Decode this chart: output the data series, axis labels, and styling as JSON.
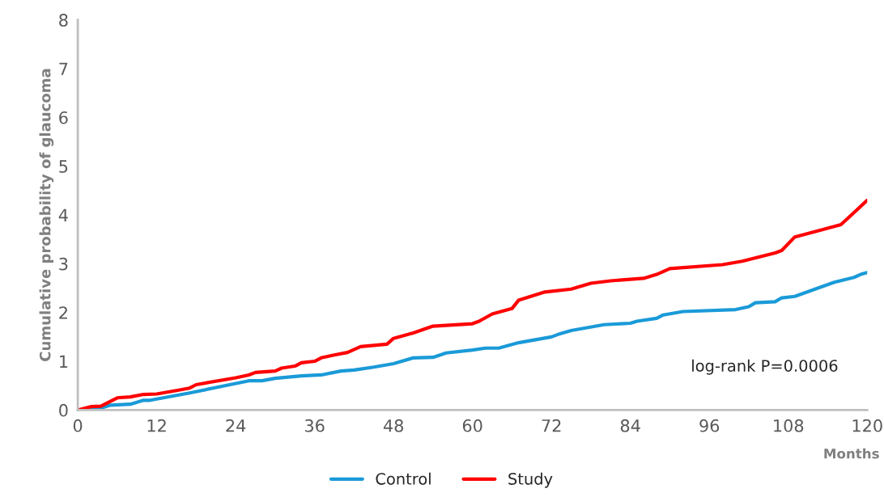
{
  "chart_data": {
    "type": "line",
    "xlabel": "Months",
    "ylabel": "Cumulative probability of glaucoma",
    "xlim": [
      0,
      120
    ],
    "xticks": [
      0,
      12,
      24,
      36,
      48,
      60,
      72,
      84,
      96,
      108,
      120
    ],
    "ylim": [
      0,
      8
    ],
    "yticks": [
      0,
      1,
      2,
      3,
      4,
      5,
      6,
      7,
      8
    ],
    "grid": false,
    "legend": "bottom",
    "marker": "none",
    "line_style": "solid",
    "annotations": [
      "log-rank P=0.0006"
    ],
    "series": [
      {
        "name": "Control",
        "color": "#1a9ad8",
        "x": [
          0,
          3,
          5,
          8,
          10,
          11,
          17,
          26,
          28,
          30,
          34,
          37,
          40,
          42,
          45,
          48,
          51,
          54,
          56,
          60,
          62,
          64,
          67,
          72,
          73,
          75,
          80,
          84,
          85,
          88,
          89,
          92,
          100,
          102,
          103,
          106,
          107,
          109,
          115,
          118,
          119,
          120
        ],
        "values": [
          0,
          0.02,
          0.1,
          0.12,
          0.2,
          0.2,
          0.35,
          0.6,
          0.6,
          0.65,
          0.7,
          0.72,
          0.8,
          0.82,
          0.88,
          0.95,
          1.07,
          1.08,
          1.17,
          1.23,
          1.27,
          1.27,
          1.38,
          1.5,
          1.55,
          1.63,
          1.75,
          1.78,
          1.82,
          1.88,
          1.95,
          2.02,
          2.06,
          2.12,
          2.2,
          2.22,
          2.3,
          2.33,
          2.62,
          2.72,
          2.78,
          2.82
        ]
      },
      {
        "name": "Study",
        "color": "#ff0000",
        "x": [
          0,
          2,
          3.5,
          6,
          8,
          10,
          12,
          15,
          17,
          18,
          24,
          26,
          27,
          30,
          31,
          33,
          34,
          36,
          37,
          39,
          41,
          43,
          47,
          48,
          51,
          54,
          60,
          61,
          63,
          66,
          67,
          71,
          75,
          78,
          81,
          86,
          88,
          90,
          98,
          101,
          106,
          107,
          109,
          116,
          118,
          120
        ],
        "values": [
          0,
          0.07,
          0.08,
          0.25,
          0.27,
          0.32,
          0.33,
          0.4,
          0.45,
          0.52,
          0.66,
          0.72,
          0.77,
          0.8,
          0.86,
          0.9,
          0.97,
          1.0,
          1.07,
          1.13,
          1.18,
          1.3,
          1.35,
          1.47,
          1.58,
          1.72,
          1.77,
          1.82,
          1.97,
          2.08,
          2.25,
          2.42,
          2.48,
          2.6,
          2.65,
          2.7,
          2.78,
          2.9,
          2.98,
          3.05,
          3.22,
          3.27,
          3.55,
          3.8,
          4.05,
          4.3
        ]
      }
    ]
  }
}
